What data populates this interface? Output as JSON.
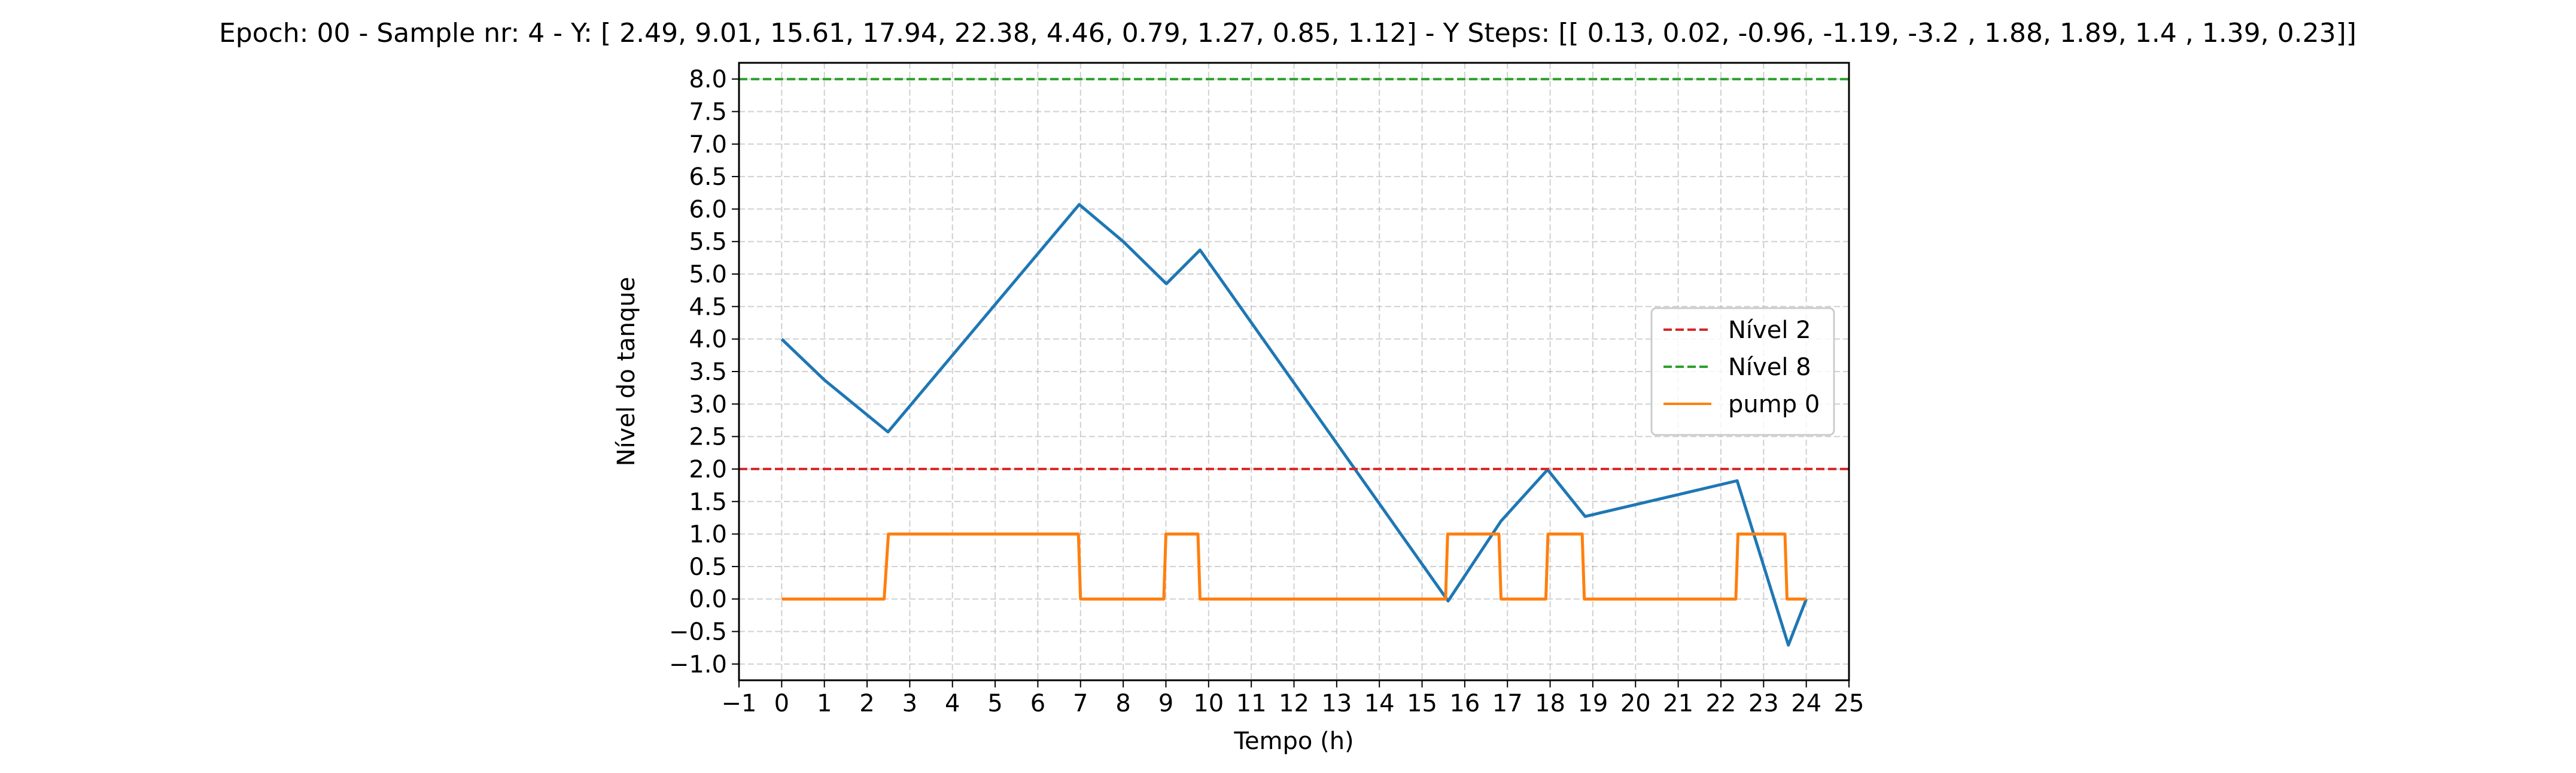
{
  "chart_data": {
    "type": "line",
    "title": "Epoch: 00 - Sample nr: 4 - Y: [ 2.49,  9.01, 15.61, 17.94, 22.38,  4.46,  0.79,  1.27,  0.85,  1.12] - Y Steps: [[ 0.13,  0.02, -0.96, -1.19, -3.2 ,  1.88,  1.89,  1.4 ,  1.39,  0.23]]",
    "xlabel": "Tempo (h)",
    "ylabel": "Nível do tanque",
    "xlim": [
      -1,
      25
    ],
    "ylim": [
      -1.25,
      8.25
    ],
    "x_ticks": [
      -1,
      0,
      1,
      2,
      3,
      4,
      5,
      6,
      7,
      8,
      9,
      10,
      11,
      12,
      13,
      14,
      15,
      16,
      17,
      18,
      19,
      20,
      21,
      22,
      23,
      24,
      25
    ],
    "x_tick_labels": [
      "−1",
      "0",
      "1",
      "2",
      "3",
      "4",
      "5",
      "6",
      "7",
      "8",
      "9",
      "10",
      "11",
      "12",
      "13",
      "14",
      "15",
      "16",
      "17",
      "18",
      "19",
      "20",
      "21",
      "22",
      "23",
      "24",
      "25"
    ],
    "y_ticks": [
      -1.0,
      -0.5,
      0.0,
      0.5,
      1.0,
      1.5,
      2.0,
      2.5,
      3.0,
      3.5,
      4.0,
      4.5,
      5.0,
      5.5,
      6.0,
      6.5,
      7.0,
      7.5,
      8.0
    ],
    "y_tick_labels": [
      "−1.0",
      "−0.5",
      "0.0",
      "0.5",
      "1.0",
      "1.5",
      "2.0",
      "2.5",
      "3.0",
      "3.5",
      "4.0",
      "4.5",
      "5.0",
      "5.5",
      "6.0",
      "6.5",
      "7.0",
      "7.5",
      "8.0"
    ],
    "grid": true,
    "legend_position": "center-right",
    "series": [
      {
        "name": "",
        "color": "#1f77b4",
        "style": "solid",
        "x": [
          0,
          1,
          2.49,
          6.97,
          8.0,
          9.01,
          9.8,
          15.61,
          16.85,
          17.94,
          18.82,
          22.38,
          23.58,
          24
        ],
        "y": [
          4.0,
          3.37,
          2.57,
          6.07,
          5.5,
          4.85,
          5.37,
          -0.03,
          1.2,
          1.99,
          1.27,
          1.82,
          -0.71,
          0.0
        ]
      },
      {
        "name": "Nível 2",
        "color": "#d62728",
        "style": "dashed",
        "x": [
          -1,
          25
        ],
        "y": [
          2,
          2
        ]
      },
      {
        "name": "Nível 8",
        "color": "#2ca02c",
        "style": "dashed",
        "x": [
          -1,
          25
        ],
        "y": [
          8,
          8
        ]
      },
      {
        "name": "pump 0",
        "color": "#ff7f0e",
        "style": "solid",
        "x": [
          0,
          2.4,
          2.5,
          6.95,
          7.0,
          8.95,
          9.0,
          9.75,
          9.8,
          15.55,
          15.6,
          16.8,
          16.85,
          17.9,
          17.95,
          18.75,
          18.8,
          22.35,
          22.4,
          23.5,
          23.55,
          24
        ],
        "y": [
          0,
          0,
          1,
          1,
          0,
          0,
          1,
          1,
          0,
          0,
          1,
          1,
          0,
          0,
          1,
          1,
          0,
          0,
          1,
          1,
          0,
          0
        ]
      }
    ]
  }
}
